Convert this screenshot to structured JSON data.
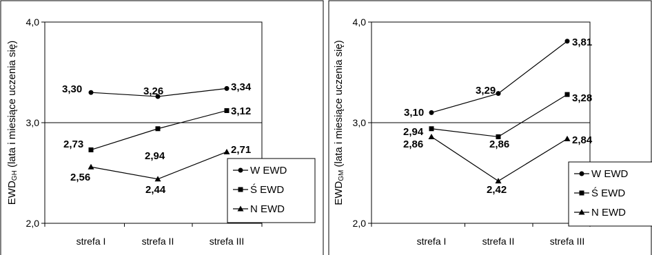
{
  "chart_data": [
    {
      "type": "line",
      "categories": [
        "strefa I",
        "strefa II",
        "strefa III"
      ],
      "ylabel": {
        "prefix": "EWD",
        "subscript": "GH",
        "suffix": " (lata i miesiące uczenia się)"
      },
      "ylim": [
        2.0,
        4.0
      ],
      "yticks": [
        "2,0",
        "3,0",
        "4,0"
      ],
      "grid": "horizontal at 3,0",
      "legend_position": "bottom-right",
      "series": [
        {
          "name": "W EWD",
          "marker": "circle",
          "values": [
            3.3,
            3.26,
            3.34
          ],
          "labels": [
            "3,30",
            "3,26",
            "3,34"
          ]
        },
        {
          "name": "Ś EWD",
          "marker": "square",
          "values": [
            2.73,
            2.94,
            3.12
          ],
          "labels": [
            "2,73",
            "2,94",
            "3,12"
          ]
        },
        {
          "name": "N EWD",
          "marker": "triangle",
          "values": [
            2.56,
            2.44,
            2.71
          ],
          "labels": [
            "2,56",
            "2,44",
            "2,71"
          ]
        }
      ]
    },
    {
      "type": "line",
      "categories": [
        "strefa I",
        "strefa II",
        "strefa III"
      ],
      "ylabel": {
        "prefix": "EWD",
        "subscript": "GM",
        "suffix": " (lata i miesiące uczenia się)"
      },
      "ylim": [
        2.0,
        4.0
      ],
      "yticks": [
        "2,0",
        "3,0",
        "4,0"
      ],
      "grid": "horizontal at 3,0",
      "legend_position": "bottom-right",
      "series": [
        {
          "name": "W EWD",
          "marker": "circle",
          "values": [
            3.1,
            3.29,
            3.81
          ],
          "labels": [
            "3,10",
            "3,29",
            "3,81"
          ]
        },
        {
          "name": "Ś EWD",
          "marker": "square",
          "values": [
            2.94,
            2.86,
            3.28
          ],
          "labels": [
            "2,94",
            "2,86",
            "3,28"
          ]
        },
        {
          "name": "N EWD",
          "marker": "triangle",
          "values": [
            2.86,
            2.42,
            2.84
          ],
          "labels": [
            "2,86",
            "2,42",
            "2,84"
          ]
        }
      ]
    }
  ]
}
